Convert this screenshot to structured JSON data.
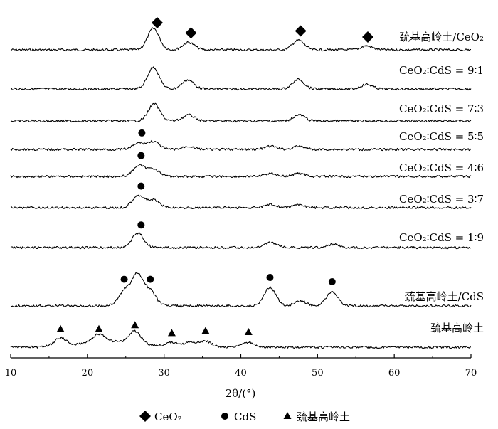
{
  "chart_data": {
    "type": "line",
    "title": "",
    "xlabel": "2θ/(°)",
    "ylabel": "",
    "xlim": [
      10,
      70
    ],
    "xticks": [
      10,
      20,
      30,
      40,
      50,
      60,
      70
    ],
    "grid": false,
    "legend_position": "bottom",
    "legend": [
      {
        "name": "CeO₂",
        "marker": "diamond"
      },
      {
        "name": "CdS",
        "marker": "circle"
      },
      {
        "name": "巯基高岭土",
        "marker": "triangle"
      }
    ],
    "series": [
      {
        "name": "巯基高岭土/CeO₂",
        "label_marker": "diamond",
        "peaks": [
          [
            28.6,
            1.0
          ],
          [
            33.2,
            0.35
          ],
          [
            47.5,
            0.45
          ],
          [
            56.4,
            0.18
          ]
        ],
        "markers": [
          {
            "x": 29.1,
            "type": "diamond"
          },
          {
            "x": 33.5,
            "type": "diamond"
          },
          {
            "x": 47.8,
            "type": "diamond"
          }
        ]
      },
      {
        "name": "CeO₂∶CdS = 9∶1",
        "peaks": [
          [
            28.6,
            0.95
          ],
          [
            33.1,
            0.4
          ],
          [
            47.5,
            0.42
          ],
          [
            56.4,
            0.2
          ]
        ],
        "markers": []
      },
      {
        "name": "CeO₂∶CdS = 7∶3",
        "peaks": [
          [
            28.7,
            0.85
          ],
          [
            33.2,
            0.3
          ],
          [
            47.6,
            0.3
          ]
        ],
        "markers": []
      },
      {
        "name": "CeO₂∶CdS = 5∶5",
        "peaks": [
          [
            26.7,
            0.4
          ],
          [
            28.6,
            0.5
          ],
          [
            33.2,
            0.2
          ],
          [
            43.9,
            0.2
          ],
          [
            47.6,
            0.2
          ]
        ],
        "markers": [
          {
            "x": 27.1,
            "type": "circle"
          }
        ]
      },
      {
        "name": "CeO₂∶CdS = 4∶6",
        "peaks": [
          [
            26.7,
            0.7
          ],
          [
            28.6,
            0.5
          ],
          [
            43.9,
            0.2
          ],
          [
            47.6,
            0.2
          ]
        ],
        "markers": [
          {
            "x": 27.0,
            "type": "circle"
          }
        ]
      },
      {
        "name": "CeO₂∶CdS = 3∶7",
        "peaks": [
          [
            26.6,
            0.8
          ],
          [
            28.6,
            0.5
          ],
          [
            43.9,
            0.2
          ],
          [
            47.6,
            0.2
          ]
        ],
        "markers": [
          {
            "x": 27.0,
            "type": "circle"
          }
        ]
      },
      {
        "name": "CeO₂∶CdS = 1∶9",
        "peaks": [
          [
            26.6,
            0.85
          ],
          [
            43.9,
            0.3
          ],
          [
            52.0,
            0.2
          ]
        ],
        "markers": [
          {
            "x": 27.0,
            "type": "circle"
          }
        ]
      },
      {
        "name": "巯基高岭土/CdS",
        "peaks": [
          [
            24.8,
            1.0
          ],
          [
            26.5,
            2.2
          ],
          [
            28.2,
            1.0
          ],
          [
            43.8,
            1.3
          ],
          [
            47.8,
            0.35
          ],
          [
            51.9,
            1.0
          ]
        ],
        "markers": [
          {
            "x": 24.8,
            "type": "circle"
          },
          {
            "x": 28.2,
            "type": "circle"
          },
          {
            "x": 43.8,
            "type": "circle"
          },
          {
            "x": 51.9,
            "type": "circle"
          }
        ]
      },
      {
        "name": "巯基高岭土",
        "peaks": [
          [
            16.5,
            0.8
          ],
          [
            21.5,
            0.8
          ],
          [
            26.2,
            1.2
          ],
          [
            31.0,
            0.4
          ],
          [
            33.4,
            0.5
          ],
          [
            35.4,
            0.6
          ],
          [
            41.0,
            0.5
          ]
        ],
        "markers": [
          {
            "x": 16.5,
            "type": "triangle"
          },
          {
            "x": 21.5,
            "type": "triangle"
          },
          {
            "x": 26.2,
            "type": "triangle"
          },
          {
            "x": 31.0,
            "type": "triangle"
          },
          {
            "x": 35.4,
            "type": "triangle"
          },
          {
            "x": 41.0,
            "type": "triangle"
          }
        ]
      }
    ]
  }
}
